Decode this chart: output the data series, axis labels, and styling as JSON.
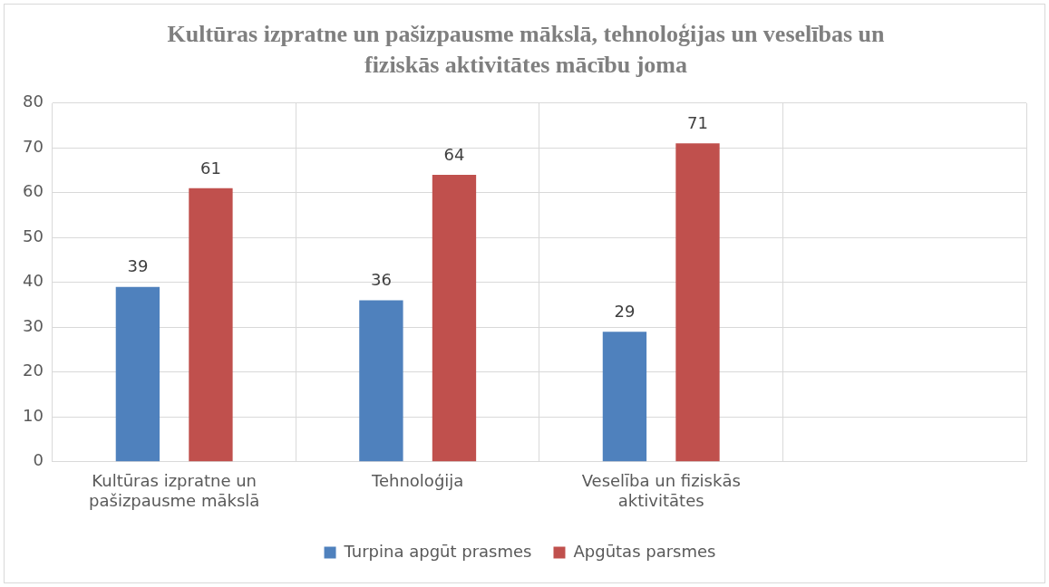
{
  "chart_data": {
    "type": "bar",
    "title": "Kultūras izpratne un pašizpausme mākslā, tehnoloģijas un veselības un fiziskās aktivitātes mācību joma",
    "categories": [
      "Kultūras izpratne un pašizpausme mākslā",
      "Tehnoloģija",
      "Veselība un fiziskās aktivitātes",
      null
    ],
    "series": [
      {
        "name": "Turpina apgūt prasmes",
        "color": "#4f81bd",
        "values": [
          39,
          36,
          29,
          null
        ]
      },
      {
        "name": "Apgūtas parsmes",
        "color": "#c0504d",
        "values": [
          61,
          64,
          71,
          null
        ]
      }
    ],
    "ylim": [
      0,
      80
    ],
    "yticks": [
      0,
      10,
      20,
      30,
      40,
      50,
      60,
      70,
      80
    ],
    "grid": true,
    "legend": "bottom",
    "data_labels": true
  }
}
